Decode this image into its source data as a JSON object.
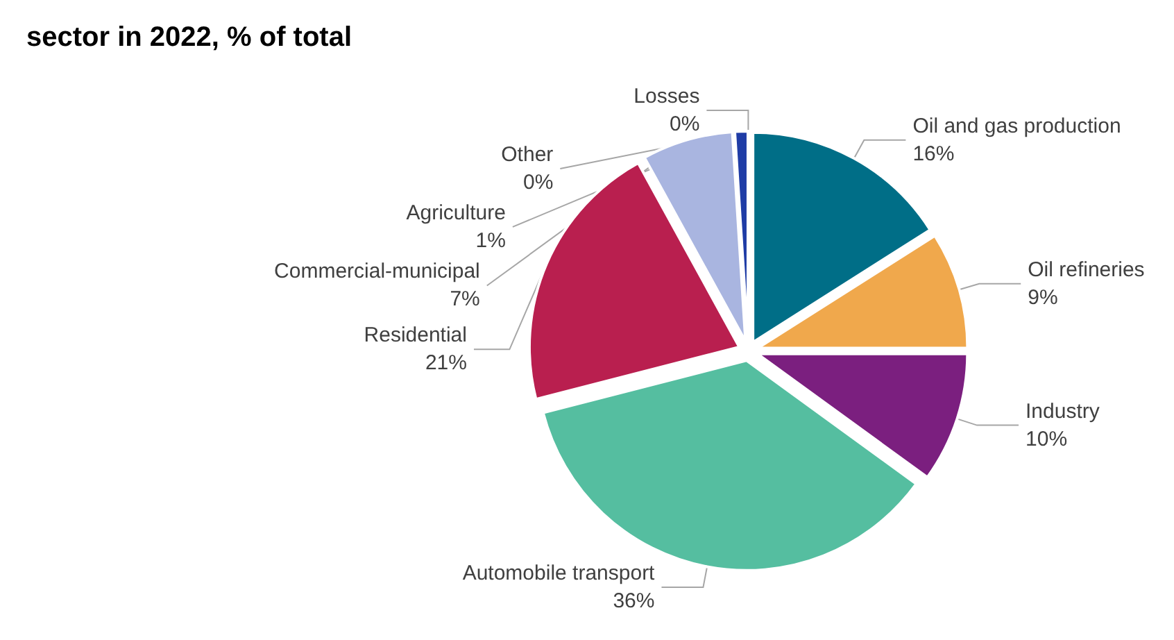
{
  "chart_data": {
    "type": "pie",
    "title": "sector in 2022, % of total",
    "categories": [
      "Oil and gas production",
      "Oil refineries",
      "Industry",
      "Automobile transport",
      "Residential",
      "Commercial-municipal",
      "Agriculture",
      "Losses",
      "Other"
    ],
    "values": [
      16,
      9,
      10,
      36,
      21,
      7,
      1,
      0,
      0
    ],
    "value_labels": [
      "16%",
      "9%",
      "10%",
      "36%",
      "21%",
      "7%",
      "1%",
      "0%",
      "0%"
    ],
    "colors": [
      "#006e87",
      "#f0a84c",
      "#7b1f7f",
      "#55bea0",
      "#b91f4f",
      "#a9b5e0",
      "#1f3ca6",
      "#2a3fa0",
      "#8c8c8c"
    ],
    "legend": false
  }
}
